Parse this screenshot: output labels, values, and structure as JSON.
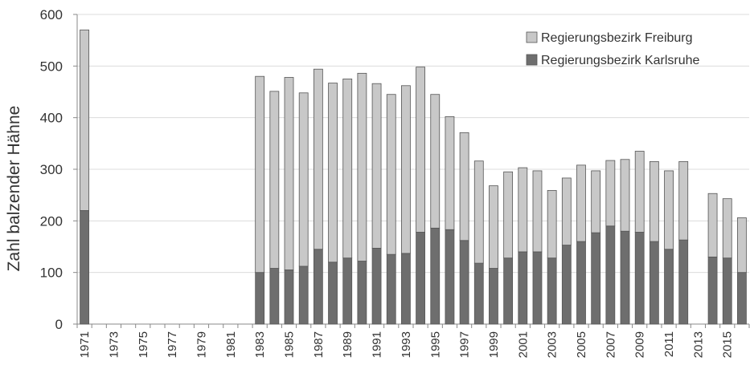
{
  "chart_data": {
    "type": "bar",
    "stacked": true,
    "title": "",
    "xlabel": "",
    "ylabel": "Zahl balzender Hähne",
    "ylim": [
      0,
      600
    ],
    "yticks": [
      0,
      100,
      200,
      300,
      400,
      500,
      600
    ],
    "grid": true,
    "legend_position": "top-right",
    "years": [
      1971,
      1972,
      1973,
      1974,
      1975,
      1976,
      1977,
      1978,
      1979,
      1980,
      1981,
      1982,
      1983,
      1984,
      1985,
      1986,
      1987,
      1988,
      1989,
      1990,
      1991,
      1992,
      1993,
      1994,
      1995,
      1996,
      1997,
      1998,
      1999,
      2000,
      2001,
      2002,
      2003,
      2004,
      2005,
      2006,
      2007,
      2008,
      2009,
      2010,
      2011,
      2012,
      2013,
      2014,
      2015,
      2016
    ],
    "xtick_labels": [
      "1971",
      "1973",
      "1975",
      "1977",
      "1979",
      "1981",
      "1983",
      "1985",
      "1987",
      "1989",
      "1991",
      "1993",
      "1995",
      "1997",
      "1999",
      "2001",
      "2003",
      "2005",
      "2007",
      "2009",
      "2011",
      "2013",
      "2015"
    ],
    "series": [
      {
        "name": "Regierungsbezirk Karlsruhe",
        "color": "#6e6e6e",
        "values": [
          220,
          null,
          null,
          null,
          null,
          null,
          null,
          null,
          null,
          null,
          null,
          null,
          100,
          108,
          105,
          112,
          145,
          120,
          128,
          122,
          147,
          135,
          137,
          178,
          186,
          183,
          162,
          118,
          108,
          128,
          140,
          140,
          128,
          153,
          160,
          177,
          190,
          180,
          178,
          160,
          145,
          163,
          null,
          130,
          128,
          100
        ]
      },
      {
        "name": "Regierungsbezirk Freiburg",
        "color": "#c8c8c8",
        "values": [
          350,
          null,
          null,
          null,
          null,
          null,
          null,
          null,
          null,
          null,
          null,
          null,
          380,
          343,
          373,
          336,
          349,
          347,
          347,
          364,
          319,
          310,
          325,
          320,
          259,
          219,
          209,
          198,
          160,
          167,
          163,
          157,
          131,
          130,
          148,
          120,
          127,
          139,
          157,
          155,
          152,
          152,
          null,
          123,
          115,
          106
        ]
      }
    ]
  }
}
